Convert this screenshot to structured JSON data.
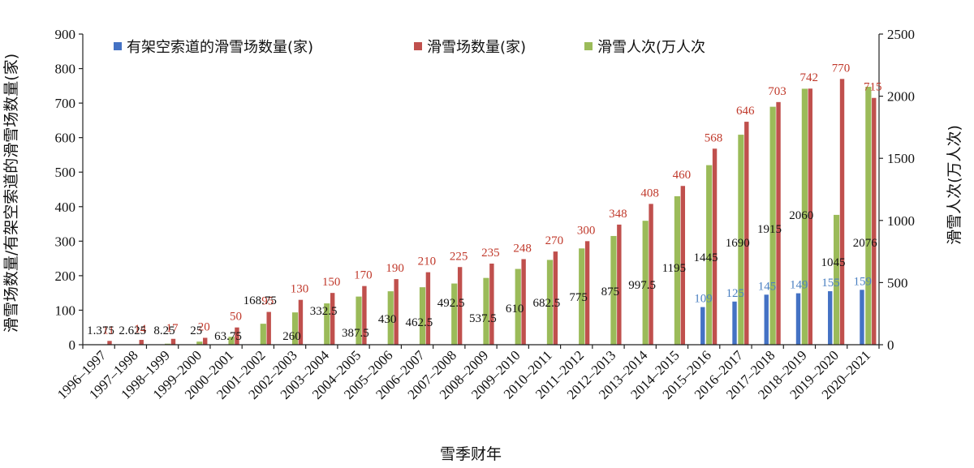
{
  "chart_data": {
    "type": "bar",
    "xlabel": "雪季财年",
    "ylabel_left": "滑雪场数量/有架空索道的滑雪场数量(家)",
    "ylabel_right": "滑雪人次(万人次)",
    "ylim_left": [
      0,
      900
    ],
    "ylim_right": [
      0,
      2500
    ],
    "yticks_left": [
      "0",
      "100",
      "200",
      "300",
      "400",
      "500",
      "600",
      "700",
      "800",
      "900"
    ],
    "yticks_right": [
      "0",
      "500",
      "1000",
      "1500",
      "2000",
      "2500"
    ],
    "grid": false,
    "legend_position": "top",
    "categories": [
      "1996–1997",
      "1997–1998",
      "1998–1999",
      "1999–2000",
      "2000–2001",
      "2001–2002",
      "2002–2003",
      "2003–2004",
      "2004–2005",
      "2005–2006",
      "2006–2007",
      "2007–2008",
      "2008–2009",
      "2009–2010",
      "2010–2011",
      "2011–2012",
      "2012–2013",
      "2013–2014",
      "2014–2015",
      "2015–2016",
      "2016–2017",
      "2017–2018",
      "2018–2019",
      "2019–2020",
      "2020–2021"
    ],
    "series": [
      {
        "name": "有架空索道的滑雪场数量(家)",
        "axis": "left",
        "color": "#4472c4",
        "label_color": "#4a7fc1",
        "values": [
          null,
          null,
          null,
          null,
          null,
          null,
          null,
          null,
          null,
          null,
          null,
          null,
          null,
          null,
          null,
          null,
          null,
          null,
          null,
          109,
          125,
          145,
          149,
          155,
          159
        ],
        "labels": [
          "",
          "",
          "",
          "",
          "",
          "",
          "",
          "",
          "",
          "",
          "",
          "",
          "",
          "",
          "",
          "",
          "",
          "",
          "",
          "109",
          "125",
          "145",
          "149",
          "155",
          "159"
        ]
      },
      {
        "name": "滑雪场数量(家)",
        "axis": "left",
        "color": "#c0504d",
        "label_color": "#c0392b",
        "values": [
          11,
          14,
          17,
          20,
          50,
          95,
          130,
          150,
          170,
          190,
          210,
          225,
          235,
          248,
          270,
          300,
          348,
          408,
          460,
          568,
          646,
          703,
          742,
          770,
          715
        ],
        "labels": [
          "11",
          "14",
          "17",
          "20",
          "50",
          "95",
          "130",
          "150",
          "170",
          "190",
          "210",
          "225",
          "235",
          "248",
          "270",
          "300",
          "348",
          "408",
          "460",
          "568",
          "646",
          "703",
          "742",
          "770",
          "715"
        ]
      },
      {
        "name": "滑雪人次(万人次",
        "axis": "right",
        "color": "#9bbb59",
        "label_color": "#111111",
        "values": [
          1.375,
          2.625,
          8.25,
          25,
          63.75,
          168.75,
          260,
          332.5,
          387.5,
          430,
          462.5,
          492.5,
          537.5,
          610,
          682.5,
          775,
          875,
          997.5,
          1195,
          1445,
          1690,
          1915,
          2060,
          1045,
          2076
        ],
        "labels": [
          "1.375",
          "2.625",
          "8.25",
          "25",
          "63.75",
          "168.75",
          "260",
          "332.5",
          "387.5",
          "430",
          "462.5",
          "492.5",
          "537.5",
          "610",
          "682.5",
          "775",
          "875",
          "997.5",
          "1195",
          "1445",
          "1690",
          "1915",
          "2060",
          "1045",
          "2076"
        ]
      }
    ]
  }
}
